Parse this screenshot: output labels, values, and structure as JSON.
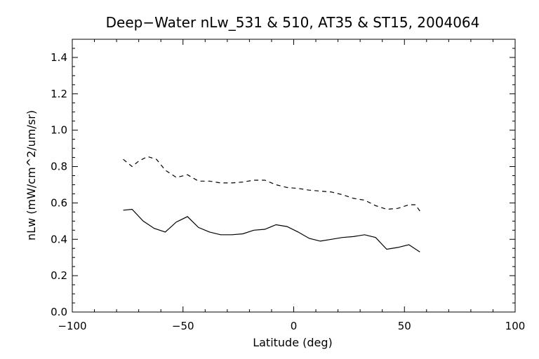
{
  "chart_data": {
    "type": "line",
    "title": "Deep−Water nLw_531 & 510, AT35 & ST15, 2004064",
    "xlabel": "Latitude (deg)",
    "ylabel": "nLw (mW/cm^2/um/sr)",
    "xlim": [
      -100,
      100
    ],
    "ylim": [
      0.0,
      1.5
    ],
    "x_ticks": [
      "−100",
      "−50",
      "0",
      "50",
      "100"
    ],
    "y_ticks": [
      "0.0",
      "0.2",
      "0.4",
      "0.6",
      "0.8",
      "1.0",
      "1.2",
      "1.4"
    ],
    "grid": false,
    "series": [
      {
        "style": "solid",
        "x": [
          -77,
          -73,
          -68,
          -63,
          -58,
          -53,
          -48,
          -43,
          -38,
          -33,
          -28,
          -23,
          -18,
          -13,
          -8,
          -3,
          2,
          7,
          12,
          17,
          22,
          27,
          32,
          37,
          42,
          47,
          52,
          57
        ],
        "y": [
          0.56,
          0.565,
          0.5,
          0.46,
          0.44,
          0.495,
          0.525,
          0.465,
          0.44,
          0.425,
          0.425,
          0.43,
          0.45,
          0.455,
          0.48,
          0.47,
          0.44,
          0.405,
          0.39,
          0.4,
          0.41,
          0.415,
          0.425,
          0.41,
          0.345,
          0.355,
          0.37,
          0.33
        ]
      },
      {
        "style": "dashed",
        "x": [
          -77,
          -73,
          -70,
          -66,
          -62,
          -58,
          -53,
          -48,
          -43,
          -38,
          -33,
          -28,
          -23,
          -18,
          -13,
          -8,
          -3,
          2,
          7,
          12,
          17,
          22,
          27,
          32,
          37,
          42,
          47,
          52,
          55,
          57
        ],
        "y": [
          0.84,
          0.8,
          0.83,
          0.855,
          0.84,
          0.78,
          0.74,
          0.755,
          0.72,
          0.72,
          0.71,
          0.71,
          0.715,
          0.725,
          0.725,
          0.7,
          0.685,
          0.68,
          0.67,
          0.665,
          0.66,
          0.645,
          0.625,
          0.615,
          0.585,
          0.565,
          0.57,
          0.59,
          0.59,
          0.555
        ]
      }
    ]
  }
}
